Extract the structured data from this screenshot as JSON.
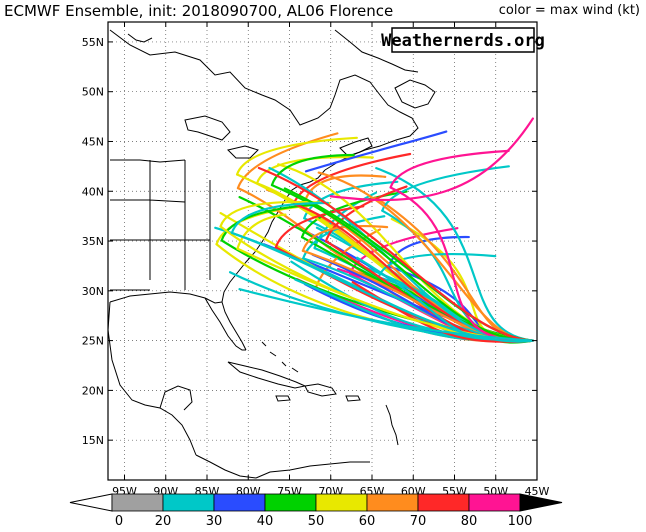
{
  "header": {
    "title": "ECMWF Ensemble, init: 2018090700, AL06 Florence",
    "legend_note": "color = max wind (kt)"
  },
  "watermark": "Weathernerds.org",
  "map": {
    "projection": "lat-lon",
    "lon_range": [
      -97,
      -45
    ],
    "lat_range": [
      11,
      57
    ],
    "gridlines": "dotted",
    "lat_labels": [
      "15N",
      "20N",
      "25N",
      "30N",
      "35N",
      "40N",
      "45N",
      "50N",
      "55N"
    ],
    "lon_labels": [
      "95W",
      "90W",
      "85W",
      "80W",
      "75W",
      "70W",
      "65W",
      "60W",
      "55W",
      "50W",
      "45W"
    ]
  },
  "colorbar": {
    "labels": [
      "0",
      "20",
      "30",
      "40",
      "50",
      "60",
      "70",
      "80",
      "100"
    ],
    "colors": [
      "#a0a0a0",
      "#00c8c8",
      "#2a4cff",
      "#00d200",
      "#e8e800",
      "#ff8c1e",
      "#ff2828",
      "#ff1493",
      "#000000"
    ],
    "left_arrow_color": "#ffffff"
  },
  "tracks": {
    "origin": {
      "lon": -45.5,
      "lat": 25.0
    },
    "member_count": 52
  }
}
